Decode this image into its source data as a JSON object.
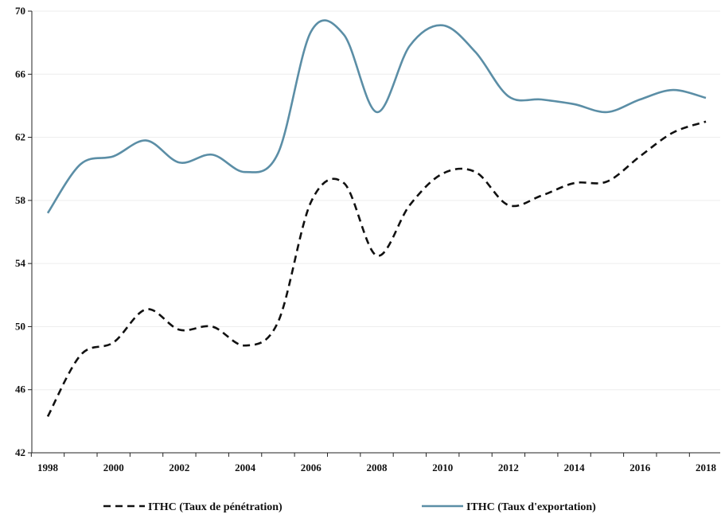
{
  "chart_data": {
    "type": "line",
    "title": "",
    "xlabel": "",
    "ylabel": "",
    "x": [
      1998,
      1999,
      2000,
      2001,
      2002,
      2003,
      2004,
      2005,
      2006,
      2007,
      2008,
      2009,
      2010,
      2011,
      2012,
      2013,
      2014,
      2015,
      2016,
      2017,
      2018
    ],
    "x_tick_labels": [
      "1998",
      "2000",
      "2002",
      "2004",
      "2006",
      "2008",
      "2010",
      "2012",
      "2014",
      "2016",
      "2018"
    ],
    "y_tick_labels": [
      "42",
      "46",
      "50",
      "54",
      "58",
      "62",
      "66",
      "70"
    ],
    "ylim": [
      42,
      70
    ],
    "xlim": [
      1998,
      2018
    ],
    "grid": "horizontal",
    "legend_position": "bottom",
    "series": [
      {
        "name": "ITHC (Taux de pénétration)",
        "style": "dashed",
        "color": "#111111",
        "values": [
          44.3,
          48.2,
          49.0,
          51.1,
          49.8,
          50.0,
          48.8,
          50.3,
          57.9,
          59.1,
          54.5,
          57.7,
          59.7,
          59.8,
          57.7,
          58.3,
          59.1,
          59.2,
          60.8,
          62.3,
          63.0
        ]
      },
      {
        "name": "ITHC (Taux d'exportation)",
        "style": "solid",
        "color": "#5b8ea6",
        "values": [
          57.2,
          60.3,
          60.8,
          61.8,
          60.4,
          60.9,
          59.8,
          61.0,
          68.7,
          68.5,
          63.6,
          67.8,
          69.1,
          67.4,
          64.6,
          64.4,
          64.1,
          63.6,
          64.4,
          65.0,
          64.5
        ]
      }
    ]
  }
}
